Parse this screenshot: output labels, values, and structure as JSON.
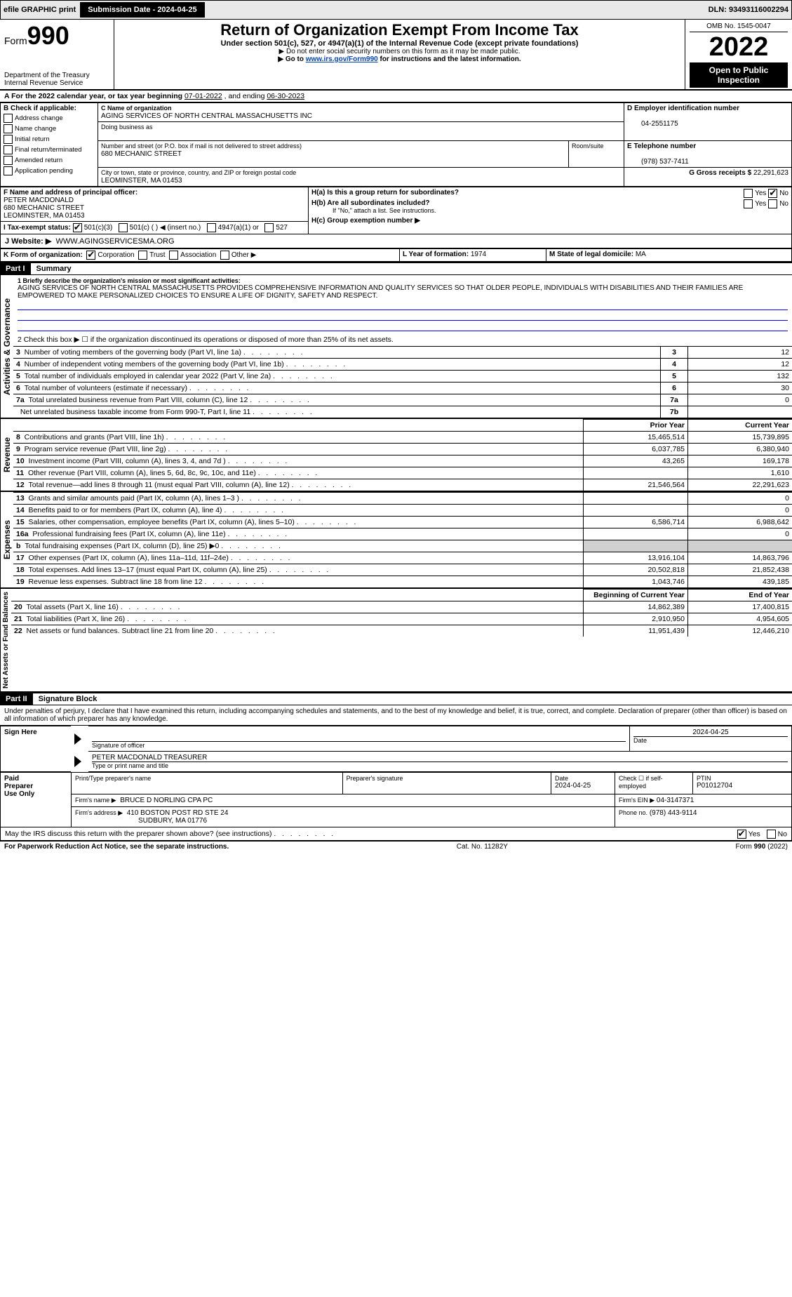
{
  "topbar": {
    "efile": "efile GRAPHIC print",
    "submission_label": "Submission Date - 2024-04-25",
    "dln_label": "DLN: 93493116002294"
  },
  "header": {
    "form_prefix": "Form",
    "form_number": "990",
    "title": "Return of Organization Exempt From Income Tax",
    "subtitle": "Under section 501(c), 527, or 4947(a)(1) of the Internal Revenue Code (except private foundations)",
    "warning": "▶ Do not enter social security numbers on this form as it may be made public.",
    "goto_prefix": "▶ Go to ",
    "goto_link": "www.irs.gov/Form990",
    "goto_suffix": " for instructions and the latest information.",
    "dept": "Department of the Treasury",
    "irs": "Internal Revenue Service",
    "omb": "OMB No. 1545-0047",
    "year": "2022",
    "open_public": "Open to Public Inspection"
  },
  "line_a": {
    "text_prefix": "A For the 2022 calendar year, or tax year beginning ",
    "begin": "07-01-2022",
    "text_mid": " , and ending ",
    "end": "06-30-2023"
  },
  "box_b": {
    "label": "B Check if applicable:",
    "items": [
      "Address change",
      "Name change",
      "Initial return",
      "Final return/terminated",
      "Amended return",
      "Application pending"
    ]
  },
  "box_c": {
    "label": "C Name of organization",
    "name": "AGING SERVICES OF NORTH CENTRAL MASSACHUSETTS INC",
    "dba_label": "Doing business as",
    "street_label": "Number and street (or P.O. box if mail is not delivered to street address)",
    "room_label": "Room/suite",
    "street": "680 MECHANIC STREET",
    "city_label": "City or town, state or province, country, and ZIP or foreign postal code",
    "city": "LEOMINSTER, MA  01453"
  },
  "box_d": {
    "label": "D Employer identification number",
    "ein": "04-2551175"
  },
  "box_e": {
    "label": "E Telephone number",
    "phone": "(978) 537-7411"
  },
  "box_g": {
    "label": "G Gross receipts $",
    "amount": "22,291,623"
  },
  "box_f": {
    "label": "F Name and address of principal officer:",
    "name": "PETER MACDONALD",
    "street": "680 MECHANIC STREET",
    "city": "LEOMINSTER, MA  01453"
  },
  "box_h": {
    "a_label": "H(a)  Is this a group return for subordinates?",
    "b_label": "H(b)  Are all subordinates included?",
    "b_note": "If \"No,\" attach a list. See instructions.",
    "c_label": "H(c)  Group exemption number ▶",
    "yes": "Yes",
    "no": "No"
  },
  "box_i": {
    "label": "I  Tax-exempt status:",
    "opt1": "501(c)(3)",
    "opt2": "501(c) (   ) ◀ (insert no.)",
    "opt3": "4947(a)(1) or",
    "opt4": "527"
  },
  "box_j": {
    "label": "J  Website: ▶",
    "url": "WWW.AGINGSERVICESMA.ORG"
  },
  "box_k": {
    "label": "K Form of organization:",
    "opts": [
      "Corporation",
      "Trust",
      "Association",
      "Other ▶"
    ]
  },
  "box_l": {
    "label": "L Year of formation:",
    "val": "1974"
  },
  "box_m": {
    "label": "M State of legal domicile:",
    "val": "MA"
  },
  "part1": {
    "header": "Part I",
    "title": "Summary",
    "side_labels": {
      "gov": "Activities & Governance",
      "rev": "Revenue",
      "exp": "Expenses",
      "net": "Net Assets or Fund Balances"
    },
    "line1_label": "1  Briefly describe the organization's mission or most significant activities:",
    "line1_text": "AGING SERVICES OF NORTH CENTRAL MASSACHUSETTS PROVIDES COMPREHENSIVE INFORMATION AND QUALITY SERVICES SO THAT OLDER PEOPLE, INDIVIDUALS WITH DISABILITIES AND THEIR FAMILIES ARE EMPOWERED TO MAKE PERSONALIZED CHOICES TO ENSURE A LIFE OF DIGNITY, SAFETY AND RESPECT.",
    "line2": "2  Check this box ▶ ☐ if the organization discontinued its operations or disposed of more than 25% of its net assets.",
    "rows_gov": [
      {
        "n": "3",
        "text": "Number of voting members of the governing body (Part VI, line 1a)",
        "box": "3",
        "val": "12"
      },
      {
        "n": "4",
        "text": "Number of independent voting members of the governing body (Part VI, line 1b)",
        "box": "4",
        "val": "12"
      },
      {
        "n": "5",
        "text": "Total number of individuals employed in calendar year 2022 (Part V, line 2a)",
        "box": "5",
        "val": "132"
      },
      {
        "n": "6",
        "text": "Total number of volunteers (estimate if necessary)",
        "box": "6",
        "val": "30"
      },
      {
        "n": "7a",
        "text": "Total unrelated business revenue from Part VIII, column (C), line 12",
        "box": "7a",
        "val": "0"
      },
      {
        "n": "",
        "text": "Net unrelated business taxable income from Form 990-T, Part I, line 11",
        "box": "7b",
        "val": ""
      }
    ],
    "col_prior": "Prior Year",
    "col_current": "Current Year",
    "rows_rev": [
      {
        "n": "8",
        "text": "Contributions and grants (Part VIII, line 1h)",
        "prior": "15,465,514",
        "curr": "15,739,895"
      },
      {
        "n": "9",
        "text": "Program service revenue (Part VIII, line 2g)",
        "prior": "6,037,785",
        "curr": "6,380,940"
      },
      {
        "n": "10",
        "text": "Investment income (Part VIII, column (A), lines 3, 4, and 7d )",
        "prior": "43,265",
        "curr": "169,178"
      },
      {
        "n": "11",
        "text": "Other revenue (Part VIII, column (A), lines 5, 6d, 8c, 9c, 10c, and 11e)",
        "prior": "",
        "curr": "1,610"
      },
      {
        "n": "12",
        "text": "Total revenue—add lines 8 through 11 (must equal Part VIII, column (A), line 12)",
        "prior": "21,546,564",
        "curr": "22,291,623"
      }
    ],
    "rows_exp": [
      {
        "n": "13",
        "text": "Grants and similar amounts paid (Part IX, column (A), lines 1–3 )",
        "prior": "",
        "curr": "0"
      },
      {
        "n": "14",
        "text": "Benefits paid to or for members (Part IX, column (A), line 4)",
        "prior": "",
        "curr": "0"
      },
      {
        "n": "15",
        "text": "Salaries, other compensation, employee benefits (Part IX, column (A), lines 5–10)",
        "prior": "6,586,714",
        "curr": "6,988,642"
      },
      {
        "n": "16a",
        "text": "Professional fundraising fees (Part IX, column (A), line 11e)",
        "prior": "",
        "curr": "0"
      },
      {
        "n": "b",
        "text": "Total fundraising expenses (Part IX, column (D), line 25) ▶0",
        "prior": "",
        "curr": "",
        "shaded": true
      },
      {
        "n": "17",
        "text": "Other expenses (Part IX, column (A), lines 11a–11d, 11f–24e)",
        "prior": "13,916,104",
        "curr": "14,863,796"
      },
      {
        "n": "18",
        "text": "Total expenses. Add lines 13–17 (must equal Part IX, column (A), line 25)",
        "prior": "20,502,818",
        "curr": "21,852,438"
      },
      {
        "n": "19",
        "text": "Revenue less expenses. Subtract line 18 from line 12",
        "prior": "1,043,746",
        "curr": "439,185"
      }
    ],
    "col_begin": "Beginning of Current Year",
    "col_end": "End of Year",
    "rows_net": [
      {
        "n": "20",
        "text": "Total assets (Part X, line 16)",
        "prior": "14,862,389",
        "curr": "17,400,815"
      },
      {
        "n": "21",
        "text": "Total liabilities (Part X, line 26)",
        "prior": "2,910,950",
        "curr": "4,954,605"
      },
      {
        "n": "22",
        "text": "Net assets or fund balances. Subtract line 21 from line 20",
        "prior": "11,951,439",
        "curr": "12,446,210"
      }
    ]
  },
  "part2": {
    "header": "Part II",
    "title": "Signature Block",
    "declaration": "Under penalties of perjury, I declare that I have examined this return, including accompanying schedules and statements, and to the best of my knowledge and belief, it is true, correct, and complete. Declaration of preparer (other than officer) is based on all information of which preparer has any knowledge."
  },
  "sign": {
    "left": "Sign Here",
    "sig_label": "Signature of officer",
    "date_label": "Date",
    "date": "2024-04-25",
    "name": "PETER MACDONALD  TREASURER",
    "name_label": "Type or print name and title"
  },
  "preparer": {
    "left1": "Paid",
    "left2": "Preparer",
    "left3": "Use Only",
    "h1": "Print/Type preparer's name",
    "h2": "Preparer's signature",
    "h3": "Date",
    "date": "2024-04-25",
    "h4": "Check ☐ if self-employed",
    "h5_label": "PTIN",
    "ptin": "P01012704",
    "firm_name_label": "Firm's name    ▶",
    "firm_name": "BRUCE D NORLING CPA PC",
    "firm_ein_label": "Firm's EIN ▶",
    "firm_ein": "04-3147371",
    "firm_addr_label": "Firm's address ▶",
    "firm_addr1": "410 BOSTON POST RD STE 24",
    "firm_addr2": "SUDBURY, MA  01776",
    "phone_label": "Phone no.",
    "phone": "(978) 443-9114"
  },
  "discuss": {
    "text": "May the IRS discuss this return with the preparer shown above? (see instructions)",
    "yes": "Yes",
    "no": "No"
  },
  "footer": {
    "left": "For Paperwork Reduction Act Notice, see the separate instructions.",
    "mid": "Cat. No. 11282Y",
    "right_prefix": "Form ",
    "right_form": "990",
    "right_suffix": " (2022)"
  }
}
